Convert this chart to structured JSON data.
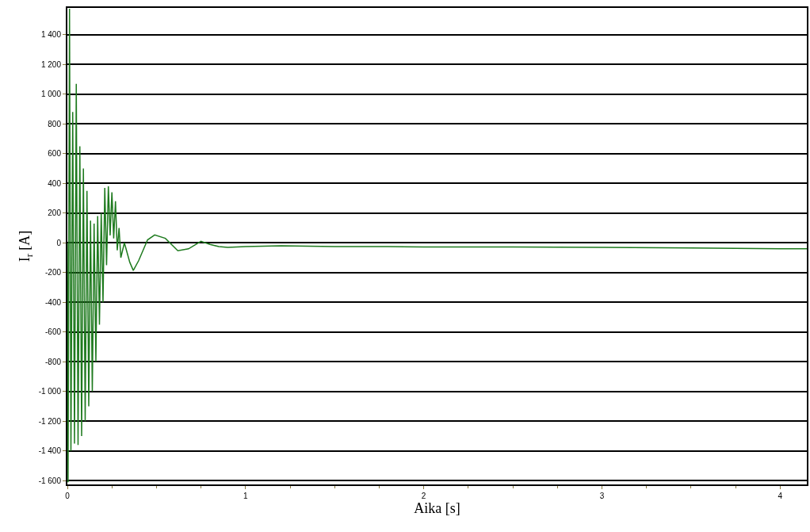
{
  "chart_data": {
    "type": "line",
    "xlabel": "Aika [s]",
    "ylabel": "I$_{r}$ [A]",
    "x": [
      0,
      0.004,
      0.012,
      0.02,
      0.03,
      0.04,
      0.05,
      0.06,
      0.07,
      0.08,
      0.09,
      0.1,
      0.11,
      0.12,
      0.13,
      0.14,
      0.15,
      0.16,
      0.17,
      0.18,
      0.19,
      0.2,
      0.21,
      0.22,
      0.23,
      0.24,
      0.25,
      0.26,
      0.27,
      0.28,
      0.29,
      0.3,
      0.32,
      0.35,
      0.37,
      0.4,
      0.45,
      0.49,
      0.55,
      0.62,
      0.68,
      0.75,
      0.8,
      0.85,
      0.9,
      1.0,
      1.2,
      1.5,
      1.8,
      2.0,
      2.5,
      3.0,
      3.5,
      4.0,
      4.15
    ],
    "series": [
      {
        "color": "#1e7a1e",
        "values": [
          0,
          -1610,
          1575,
          -1400,
          880,
          -1350,
          1070,
          -1360,
          650,
          -1300,
          500,
          -1200,
          350,
          -1100,
          150,
          -1000,
          130,
          -800,
          180,
          -550,
          200,
          -400,
          370,
          -150,
          380,
          50,
          340,
          30,
          280,
          -50,
          100,
          -100,
          0,
          -130,
          -186,
          -120,
          20,
          53,
          30,
          -53,
          -40,
          10,
          -10,
          -25,
          -30,
          -25,
          -20,
          -25,
          -25,
          -28,
          -28,
          -30,
          -35,
          -40,
          -40
        ]
      }
    ],
    "xlim": [
      0,
      4.15
    ],
    "xticks": [
      0,
      1,
      2,
      3,
      4
    ],
    "ylim": [
      -1625,
      1580
    ],
    "yticks": [
      {
        "value": -1600,
        "label": "-1 600"
      },
      {
        "value": -1400,
        "label": "-1 400"
      },
      {
        "value": -1200,
        "label": "-1 200"
      },
      {
        "value": -1000,
        "label": "-1 000"
      },
      -800,
      -600,
      -400,
      -200,
      0,
      200,
      400,
      600,
      800,
      {
        "value": 1000,
        "label": "1 000"
      },
      {
        "value": 1200,
        "label": "1 200"
      },
      {
        "value": 1400,
        "label": "1 400"
      }
    ],
    "grid": "y",
    "marker": "none",
    "line_style": "solid"
  }
}
